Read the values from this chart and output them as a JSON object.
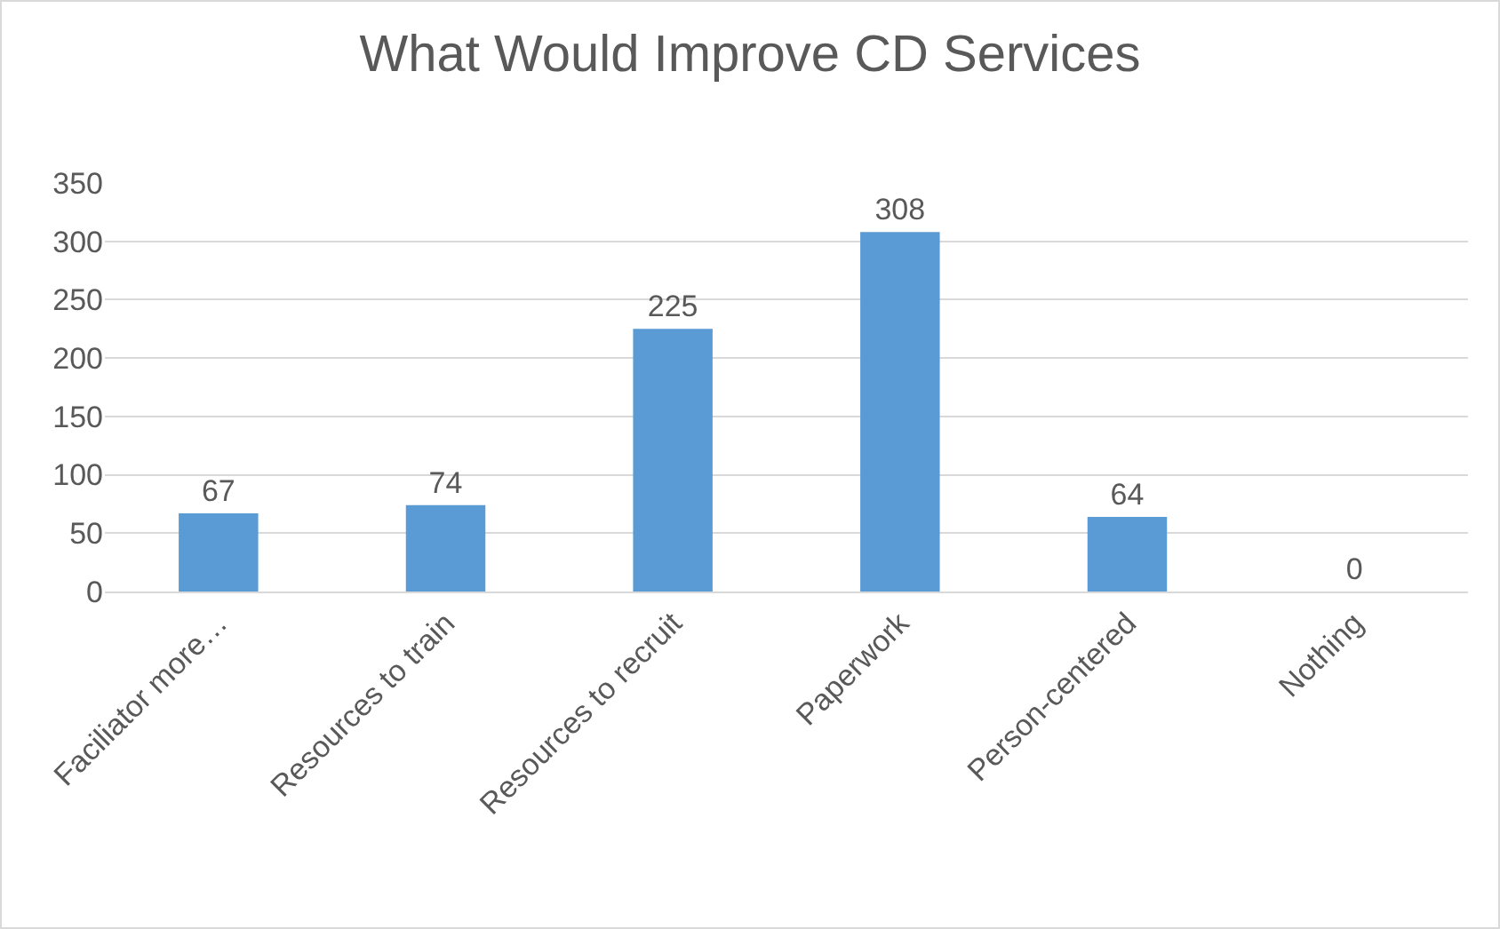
{
  "chart_data": {
    "type": "bar",
    "title": "What Would Improve CD Services",
    "categories": [
      "Faciliator more…",
      "Resources to train",
      "Resources to recruit",
      "Paperwork",
      "Person-centered",
      "Nothing"
    ],
    "values": [
      67,
      74,
      225,
      308,
      64,
      0
    ],
    "color": "#5b9bd5",
    "ylim": [
      0,
      350
    ],
    "yticks": [
      0,
      50,
      100,
      150,
      200,
      250,
      300,
      350
    ],
    "grid": "y",
    "data_labels": true,
    "legend": false
  }
}
